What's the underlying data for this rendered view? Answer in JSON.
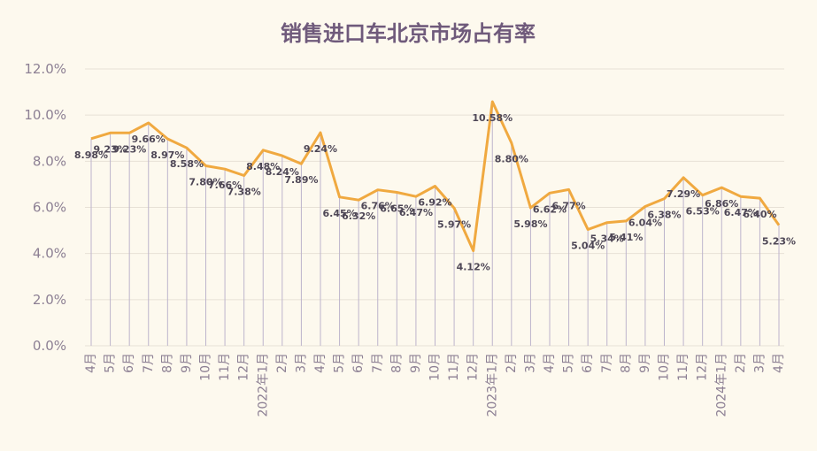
{
  "chart_data": {
    "type": "line",
    "title": "销售进口车北京市场占有率",
    "x": [
      "4月",
      "5月",
      "6月",
      "7月",
      "8月",
      "9月",
      "10月",
      "11月",
      "12月",
      "2022年1月",
      "2月",
      "3月",
      "4月",
      "5月",
      "6月",
      "7月",
      "8月",
      "9月",
      "10月",
      "11月",
      "12月",
      "2023年1月",
      "2月",
      "3月",
      "4月",
      "5月",
      "6月",
      "7月",
      "8月",
      "9月",
      "10月",
      "11月",
      "12月",
      "2024年1月",
      "2月",
      "3月",
      "4月"
    ],
    "series": [
      {
        "values": [
          8.98,
          9.23,
          9.23,
          9.66,
          8.97,
          8.58,
          7.8,
          7.66,
          7.38,
          8.48,
          8.24,
          7.89,
          9.24,
          6.45,
          6.32,
          6.76,
          6.65,
          6.47,
          6.92,
          5.97,
          4.12,
          10.58,
          8.8,
          5.98,
          6.62,
          6.77,
          5.04,
          5.34,
          5.41,
          6.04,
          6.38,
          7.29,
          6.53,
          6.86,
          6.47,
          6.4,
          5.23
        ],
        "labels": [
          "8.98%",
          "9.23%",
          "9.23%",
          "9.66%",
          "8.97%",
          "8.58%",
          "7.80%",
          "7.66%",
          "7.38%",
          "8.48%",
          "8.24%",
          "7.89%",
          "9.24%",
          "6.45%",
          "6.32%",
          "6.76%",
          "6.65%",
          "6.47%",
          "6.92%",
          "5.97%",
          "4.12%",
          "10.58%",
          "8.80%",
          "5.98%",
          "6.62%",
          "6.77%",
          "5.04%",
          "5.34%",
          "5.41%",
          "6.04%",
          "6.38%",
          "7.29%",
          "6.53%",
          "6.86%",
          "6.47%",
          "6.40%",
          "5.23%"
        ]
      }
    ],
    "yticks": [
      "0.0%",
      "2.0%",
      "4.0%",
      "6.0%",
      "8.0%",
      "10.0%",
      "12.0%"
    ],
    "ylim": [
      0,
      12
    ],
    "grid": true,
    "drop_lines": true,
    "colors": {
      "line": "#f0a940",
      "drop": "#bdb4cc",
      "grid": "#e7e1d6",
      "title": "#6f5a7b",
      "background": "#fdf9ee"
    }
  }
}
